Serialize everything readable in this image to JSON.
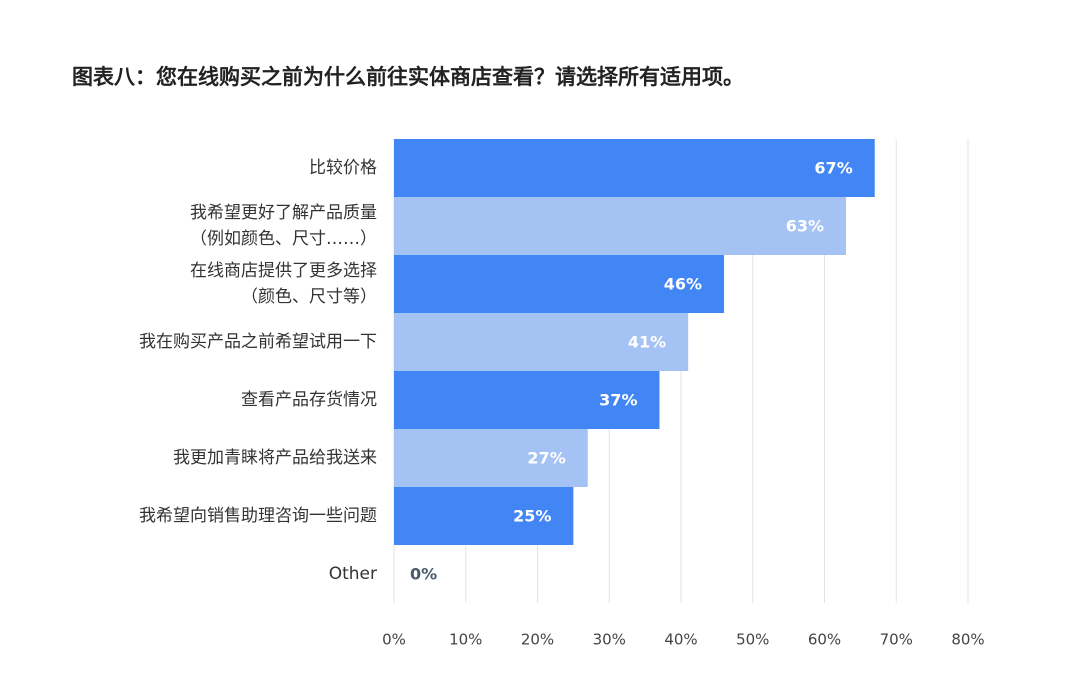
{
  "chart_data": {
    "type": "bar",
    "orientation": "horizontal",
    "title": "图表八：您在线购买之前为什么前往实体商店查看？请选择所有适用项。",
    "categories": [
      [
        "比较价格"
      ],
      [
        "我希望更好了解产品质量",
        "（例如颜色、尺寸……）"
      ],
      [
        "在线商店提供了更多选择",
        "（颜色、尺寸等）"
      ],
      [
        "我在购买产品之前希望试用一下"
      ],
      [
        "查看产品存货情况"
      ],
      [
        "我更加青睐将产品给我送来"
      ],
      [
        "我希望向销售助理咨询一些问题"
      ],
      [
        "Other"
      ]
    ],
    "values": [
      67,
      63,
      46,
      41,
      37,
      27,
      25,
      0
    ],
    "value_labels": [
      "67%",
      "63%",
      "46%",
      "41%",
      "37%",
      "27%",
      "25%",
      "0%"
    ],
    "colors": [
      "#4285f4",
      "#a4c2f4",
      "#4285f4",
      "#a4c2f4",
      "#4285f4",
      "#a4c2f4",
      "#4285f4",
      "#a4c2f4"
    ],
    "xlim": [
      0,
      80
    ],
    "xticks": [
      {
        "value": 0,
        "label": "0%"
      },
      {
        "value": 10,
        "label": "10%"
      },
      {
        "value": 20,
        "label": "20%"
      },
      {
        "value": 30,
        "label": "30%"
      },
      {
        "value": 40,
        "label": "40%"
      },
      {
        "value": 50,
        "label": "50%"
      },
      {
        "value": 60,
        "label": "60%"
      },
      {
        "value": 70,
        "label": "70%"
      },
      {
        "value": 80,
        "label": "80%"
      }
    ],
    "grid": true
  }
}
